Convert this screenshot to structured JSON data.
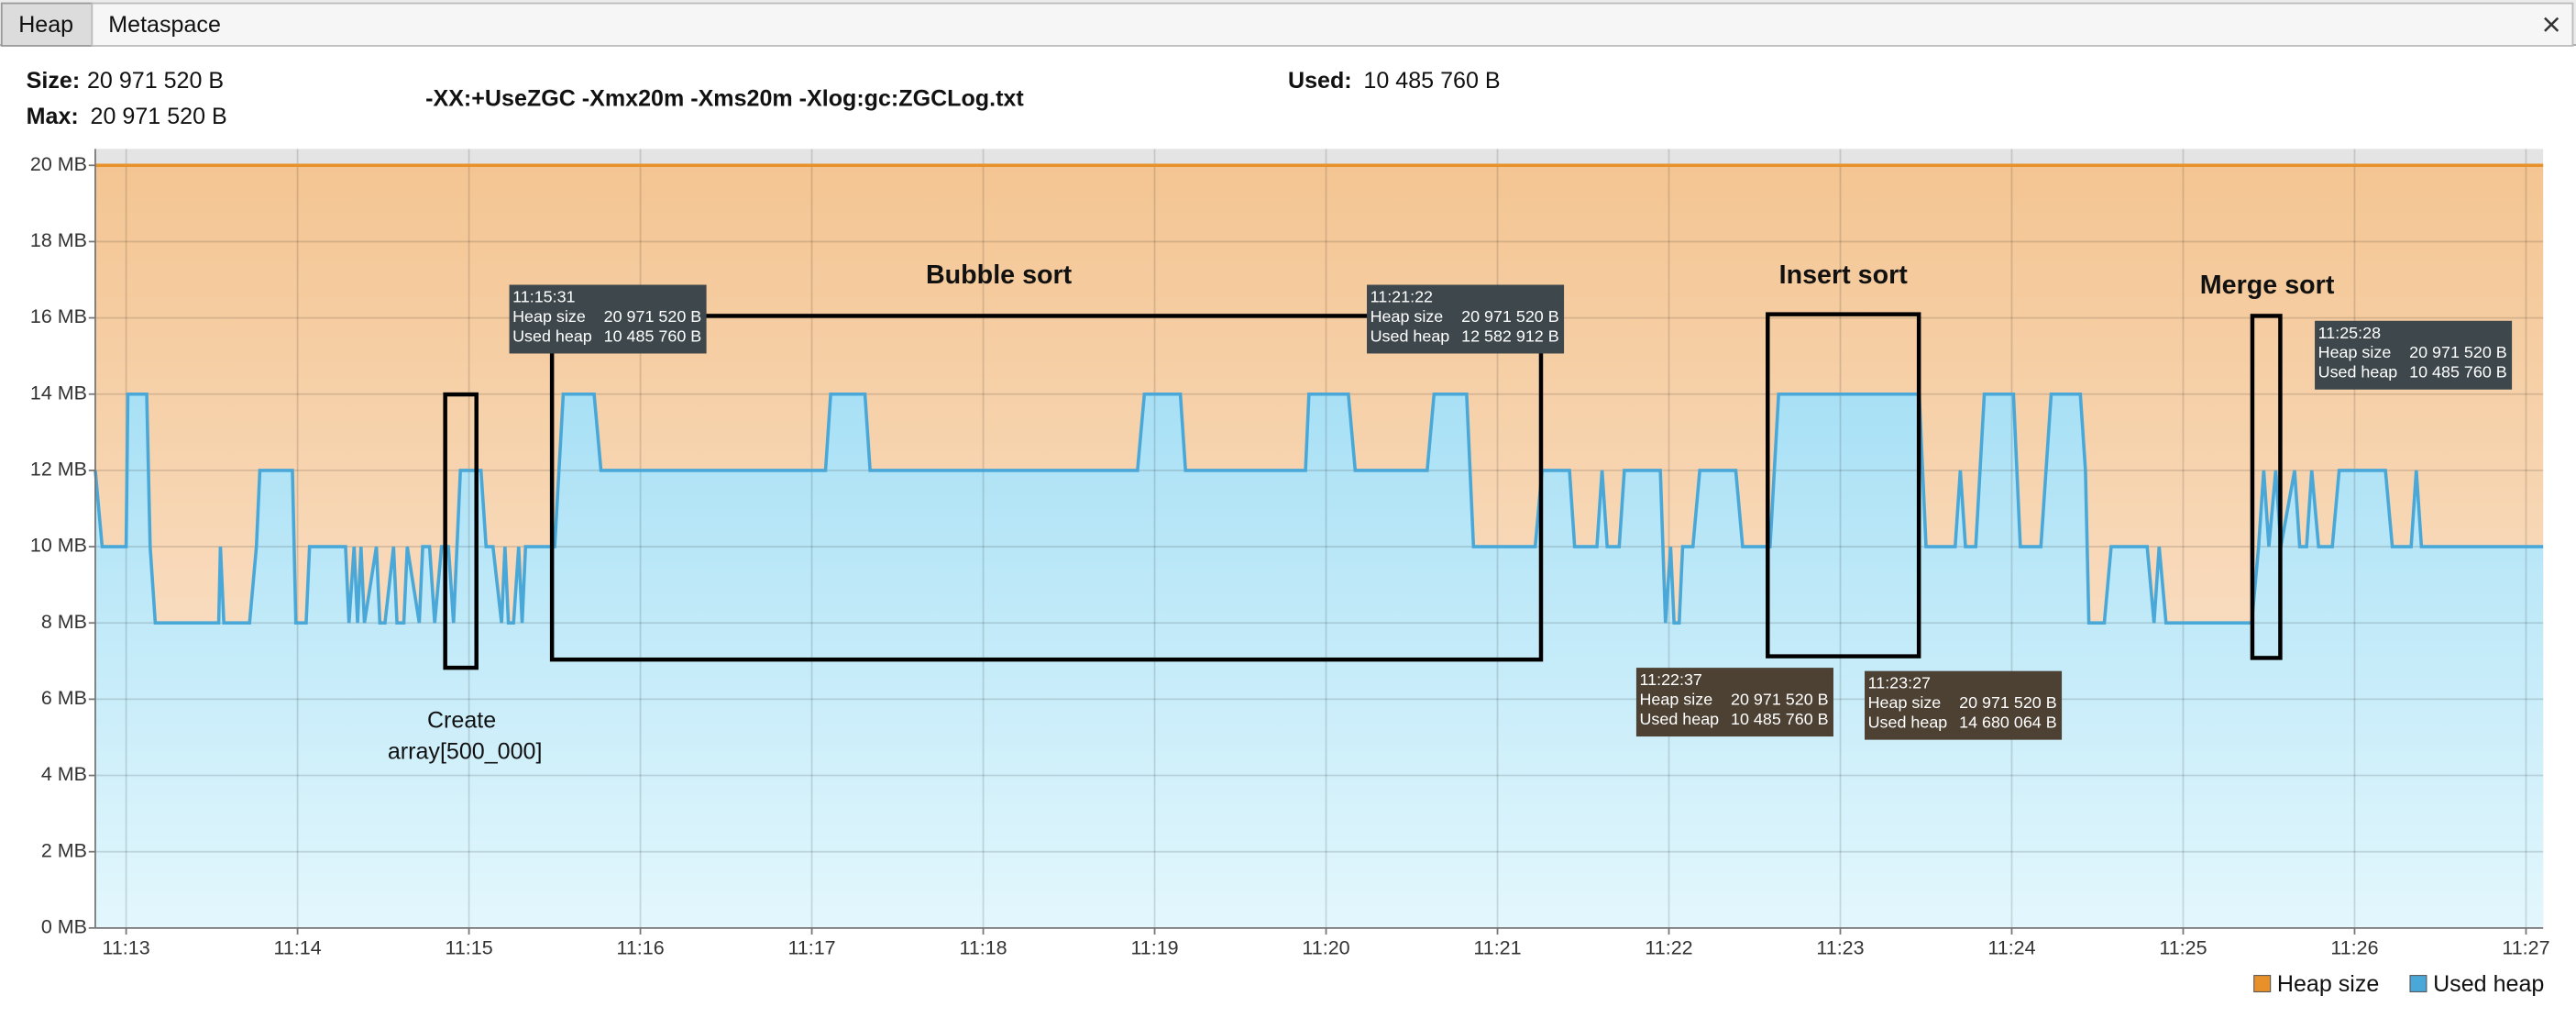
{
  "tabs": [
    "Heap",
    "Metaspace"
  ],
  "summary": {
    "size_label": "Size:",
    "size": "20 971 520 B",
    "max_label": "Max:",
    "max": "20 971 520 B",
    "used_label": "Used:",
    "used": "10 485 760 B",
    "command": "-XX:+UseZGC -Xmx20m -Xms20m -Xlog:gc:ZGCLog.txt"
  },
  "chart_data": {
    "type": "area",
    "xlim": [
      672.82,
      687.1
    ],
    "ylim": [
      0,
      20.43
    ],
    "xticks": [
      {
        "value": 673,
        "label": "11:13"
      },
      {
        "value": 674,
        "label": "11:14"
      },
      {
        "value": 675,
        "label": "11:15"
      },
      {
        "value": 676,
        "label": "11:16"
      },
      {
        "value": 677,
        "label": "11:17"
      },
      {
        "value": 678,
        "label": "11:18"
      },
      {
        "value": 679,
        "label": "11:19"
      },
      {
        "value": 680,
        "label": "11:20"
      },
      {
        "value": 681,
        "label": "11:21"
      },
      {
        "value": 682,
        "label": "11:22"
      },
      {
        "value": 683,
        "label": "11:23"
      },
      {
        "value": 684,
        "label": "11:24"
      },
      {
        "value": 685,
        "label": "11:25"
      },
      {
        "value": 686,
        "label": "11:26"
      },
      {
        "value": 687,
        "label": "11:27"
      }
    ],
    "yticks": [
      {
        "value": 0,
        "label": "0 MB"
      },
      {
        "value": 2,
        "label": "2 MB"
      },
      {
        "value": 4,
        "label": "4 MB"
      },
      {
        "value": 6,
        "label": "6 MB"
      },
      {
        "value": 8,
        "label": "8 MB"
      },
      {
        "value": 10,
        "label": "10 MB"
      },
      {
        "value": 12,
        "label": "12 MB"
      },
      {
        "value": 14,
        "label": "14 MB"
      },
      {
        "value": 16,
        "label": "16 MB"
      },
      {
        "value": 18,
        "label": "18 MB"
      },
      {
        "value": 20,
        "label": "20 MB"
      }
    ],
    "grid": true,
    "legend": "lower right",
    "series": [
      {
        "name": "Heap size",
        "color": "#e8902a",
        "x": [
          672.82,
          687.1
        ],
        "values": [
          20,
          20
        ]
      },
      {
        "name": "Used heap",
        "color": "#4aa8d8",
        "x": [
          672.82,
          672.86,
          673.0,
          673.01,
          673.12,
          673.14,
          673.17,
          673.54,
          673.55,
          673.57,
          673.72,
          673.76,
          673.78,
          673.97,
          673.99,
          674.05,
          674.07,
          674.28,
          674.3,
          674.33,
          674.35,
          674.37,
          674.39,
          674.46,
          674.48,
          674.51,
          674.56,
          674.58,
          674.62,
          674.64,
          674.71,
          674.73,
          674.77,
          674.8,
          674.84,
          674.88,
          674.91,
          674.95,
          675.07,
          675.1,
          675.14,
          675.19,
          675.21,
          675.23,
          675.26,
          675.29,
          675.31,
          675.33,
          675.5,
          675.55,
          675.73,
          675.77,
          677.08,
          677.11,
          677.31,
          677.34,
          678.9,
          678.94,
          679.15,
          679.18,
          679.88,
          679.9,
          680.13,
          680.17,
          680.59,
          680.63,
          680.82,
          680.86,
          681.22,
          681.26,
          681.42,
          681.45,
          681.58,
          681.61,
          681.64,
          681.71,
          681.74,
          681.95,
          681.98,
          682.01,
          682.03,
          682.06,
          682.08,
          682.14,
          682.18,
          682.39,
          682.43,
          682.59,
          682.64,
          683.46,
          683.5,
          683.67,
          683.7,
          683.73,
          683.79,
          683.84,
          684.01,
          684.05,
          684.17,
          684.23,
          684.4,
          684.43,
          684.45,
          684.54,
          684.58,
          684.79,
          684.83,
          684.86,
          684.9,
          685.4,
          685.44,
          685.47,
          685.5,
          685.54,
          685.57,
          685.65,
          685.68,
          685.72,
          685.75,
          685.79,
          685.87,
          685.91,
          686.18,
          686.22,
          686.33,
          686.36,
          686.39,
          687.1
        ],
        "values": [
          12,
          10,
          10,
          14,
          14,
          10,
          8,
          8,
          10,
          8,
          8,
          10,
          12,
          12,
          8,
          8,
          10,
          10,
          8,
          10,
          8,
          10,
          8,
          10,
          8,
          8,
          10,
          8,
          8,
          10,
          8,
          10,
          10,
          8,
          10,
          10,
          8,
          12,
          12,
          10,
          10,
          8,
          10,
          8,
          8,
          10,
          8,
          10,
          10,
          14,
          14,
          12,
          12,
          14,
          14,
          12,
          12,
          14,
          14,
          12,
          12,
          14,
          14,
          12,
          12,
          14,
          14,
          10,
          10,
          12,
          12,
          10,
          10,
          12,
          10,
          10,
          12,
          12,
          8,
          10,
          8,
          8,
          10,
          10,
          12,
          12,
          10,
          10,
          14,
          14,
          10,
          10,
          12,
          10,
          10,
          14,
          14,
          10,
          10,
          14,
          14,
          12,
          8,
          8,
          10,
          10,
          8,
          10,
          8,
          8,
          10,
          12,
          10,
          12,
          10,
          12,
          10,
          10,
          12,
          10,
          10,
          12,
          12,
          10,
          10,
          12,
          10,
          10
        ]
      }
    ],
    "annotations": [
      "Create",
      "array[500_000]",
      "Bubble sort",
      "Insert sort",
      "Merge sort"
    ],
    "tooltips": [
      {
        "time": "11:15:31",
        "rows": [
          [
            "Heap size",
            "20 971 520 B"
          ],
          [
            "Used heap",
            "10 485 760 B"
          ]
        ]
      },
      {
        "time": "11:21:22",
        "rows": [
          [
            "Heap size",
            "20 971 520 B"
          ],
          [
            "Used heap",
            "12 582 912 B"
          ]
        ]
      },
      {
        "time": "11:22:37",
        "rows": [
          [
            "Heap size",
            "20 971 520 B"
          ],
          [
            "Used heap",
            "10 485 760 B"
          ]
        ]
      },
      {
        "time": "11:23:27",
        "rows": [
          [
            "Heap size",
            "20 971 520 B"
          ],
          [
            "Used heap",
            "14 680 064 B"
          ]
        ]
      },
      {
        "time": "11:25:28",
        "rows": [
          [
            "Heap size",
            "20 971 520 B"
          ],
          [
            "Used heap",
            "10 485 760 B"
          ]
        ]
      }
    ]
  }
}
